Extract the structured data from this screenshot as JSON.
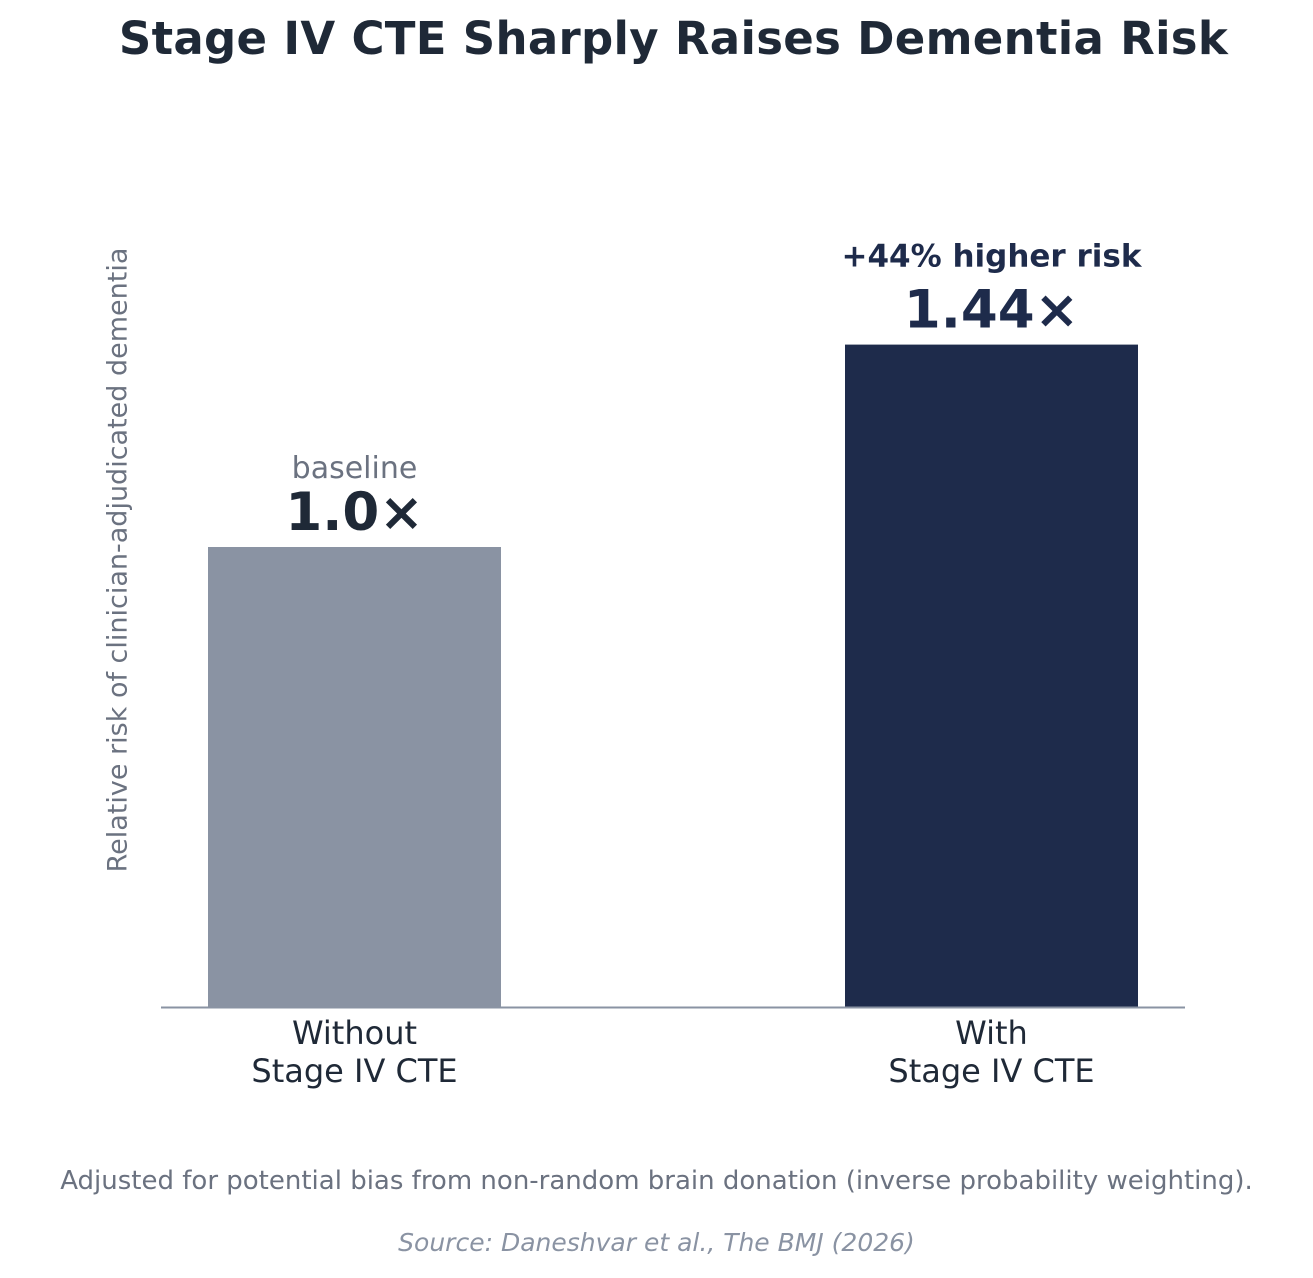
{
  "chart_data": {
    "type": "bar",
    "title": "Stage IV CTE Sharply Raises Dementia Risk",
    "ylabel": "Relative risk of clinician-adjudicated dementia",
    "xlabel": "",
    "categories": [
      [
        "Without",
        "Stage IV CTE"
      ],
      [
        "With",
        "Stage IV CTE"
      ]
    ],
    "values": [
      1.0,
      1.44
    ],
    "value_labels": [
      "1.0×",
      "1.44×"
    ],
    "annotations": [
      "baseline",
      "+44% higher risk"
    ],
    "bar_colors": [
      "#8a93a3",
      "#1e2b4b"
    ],
    "label_colors": [
      "#1f2937",
      "#1e2b4b"
    ],
    "annotation_colors": [
      "#6b7280",
      "#1e2b4b"
    ],
    "ylim": [
      0,
      1.8
    ],
    "grid": false,
    "y_ticks_visible": false
  },
  "footnote": "Adjusted for potential bias from non-random brain donation (inverse probability weighting).",
  "source": "Source: Daneshvar et al., The BMJ (2026)"
}
